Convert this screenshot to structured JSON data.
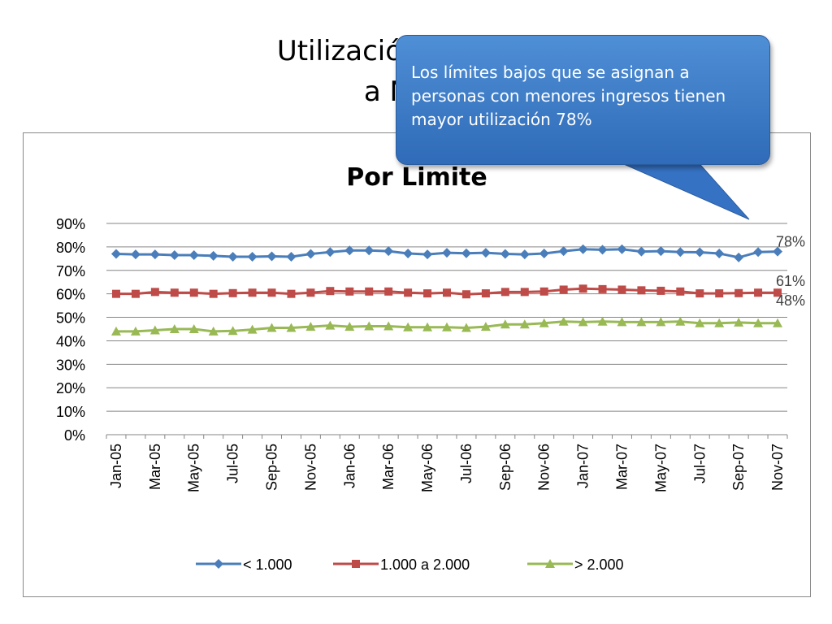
{
  "slide": {
    "title_line1": "Utilización de la líne",
    "title_line2": "a Novie"
  },
  "callout": {
    "text": "Los límites bajos que se asignan a personas con menores ingresos tienen mayor utilización  78%"
  },
  "colors": {
    "series_lt_1000": "#4a7ebb",
    "series_1000_2000": "#be4b48",
    "series_gt_2000": "#98b954",
    "gridline": "#868686",
    "callout_fill": "#3b7bd0"
  },
  "chart_data": {
    "type": "line",
    "title": "Por Limite",
    "xlabel": "",
    "ylabel": "",
    "ylim": [
      0,
      90
    ],
    "y_ticks": [
      "0%",
      "10%",
      "20%",
      "30%",
      "40%",
      "50%",
      "60%",
      "70%",
      "80%",
      "90%"
    ],
    "grid": true,
    "legend_position": "bottom",
    "categories": [
      "Jan-05",
      "Feb-05",
      "Mar-05",
      "Apr-05",
      "May-05",
      "Jun-05",
      "Jul-05",
      "Aug-05",
      "Sep-05",
      "Oct-05",
      "Nov-05",
      "Dec-05",
      "Jan-06",
      "Feb-06",
      "Mar-06",
      "Apr-06",
      "May-06",
      "Jun-06",
      "Jul-06",
      "Aug-06",
      "Sep-06",
      "Oct-06",
      "Nov-06",
      "Dec-06",
      "Jan-07",
      "Feb-07",
      "Mar-07",
      "Apr-07",
      "May-07",
      "Jun-07",
      "Jul-07",
      "Aug-07",
      "Sep-07",
      "Oct-07",
      "Nov-07"
    ],
    "x_tick_labels": [
      "Jan-05",
      "Mar-05",
      "May-05",
      "Jul-05",
      "Sep-05",
      "Nov-05",
      "Jan-06",
      "Mar-06",
      "May-06",
      "Jul-06",
      "Sep-06",
      "Nov-06",
      "Jan-07",
      "Mar-07",
      "May-07",
      "Jul-07",
      "Sep-07",
      "Nov-07"
    ],
    "series": [
      {
        "name": "< 1.000",
        "marker": "diamond",
        "end_label": "78%",
        "values": [
          77,
          76.8,
          76.8,
          76.5,
          76.5,
          76.2,
          75.8,
          75.8,
          76,
          75.8,
          77,
          77.8,
          78.5,
          78.5,
          78.2,
          77.2,
          76.8,
          77.5,
          77.3,
          77.5,
          77,
          76.8,
          77.2,
          78.2,
          79,
          78.8,
          79,
          78,
          78.2,
          77.8,
          77.7,
          77.2,
          75.5,
          77.8,
          78
        ]
      },
      {
        "name": "1.000 a 2.000",
        "marker": "square",
        "end_label": "61%",
        "values": [
          60,
          60,
          60.8,
          60.5,
          60.5,
          60,
          60.3,
          60.5,
          60.5,
          60,
          60.5,
          61.2,
          61,
          61,
          61,
          60.5,
          60.2,
          60.5,
          59.8,
          60.2,
          60.8,
          60.8,
          61,
          61.8,
          62.2,
          62,
          61.8,
          61.5,
          61.3,
          61,
          60.2,
          60.2,
          60.3,
          60.5,
          60.5
        ]
      },
      {
        "name": "> 2.000",
        "marker": "triangle",
        "end_label": "48%",
        "values": [
          44,
          44,
          44.5,
          45,
          45,
          44,
          44.2,
          44.8,
          45.5,
          45.5,
          46,
          46.5,
          46,
          46.2,
          46.2,
          45.8,
          45.8,
          45.8,
          45.5,
          46,
          47,
          47,
          47.5,
          48.2,
          48,
          48.2,
          48,
          48,
          48,
          48.2,
          47.5,
          47.5,
          47.8,
          47.5,
          47.5
        ]
      }
    ]
  }
}
